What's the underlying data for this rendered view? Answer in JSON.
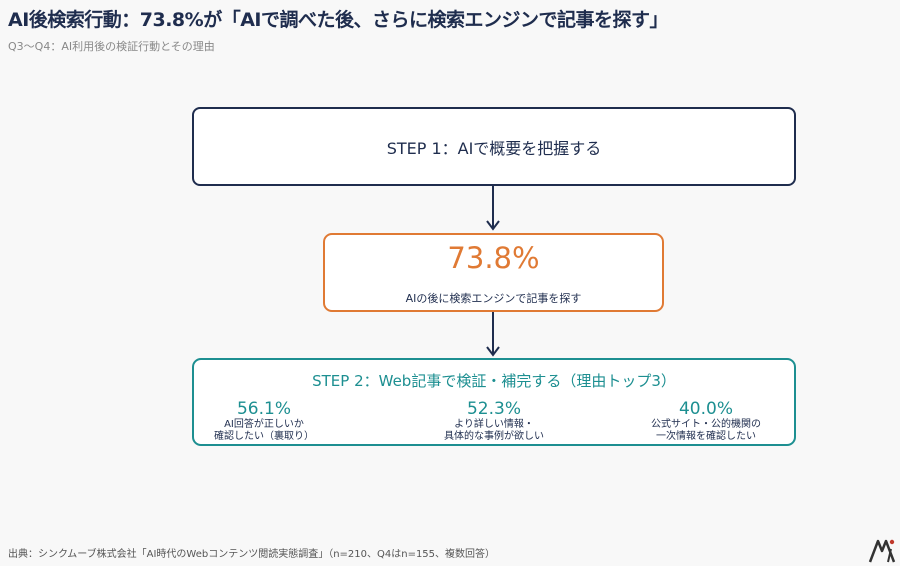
{
  "header": {
    "title": "AI後検索行動：73.8%が「AIで調べた後、さらに検索エンジンで記事を探す」",
    "subtitle": "Q3〜Q4：AI利用後の検証行動とその理由"
  },
  "step1": {
    "label": "STEP 1：AIで概要を把握する"
  },
  "middle": {
    "value": "73.8%",
    "label": "AIの後に検索エンジンで記事を探す"
  },
  "step2": {
    "label": "STEP 2：Web記事で検証・補完する（理由トップ3）",
    "reasons": [
      {
        "value": "56.1%",
        "label": "AI回答が正しいか\n確認したい（裏取り）"
      },
      {
        "value": "52.3%",
        "label": "より詳しい情報・\n具体的な事例が欲しい"
      },
      {
        "value": "40.0%",
        "label": "公式サイト・公的機関の\n一次情報を確認したい"
      }
    ]
  },
  "footer": {
    "source": "出典：シンクムーブ株式会社「AI時代のWebコンテンツ閲読実態調査」（n=210、Q4はn=155、複数回答）"
  },
  "colors": {
    "navy": "#1f2d4e",
    "orange": "#e07a34",
    "teal": "#1d8f91"
  },
  "icons": {
    "logo": "itmedia-logo-icon"
  }
}
